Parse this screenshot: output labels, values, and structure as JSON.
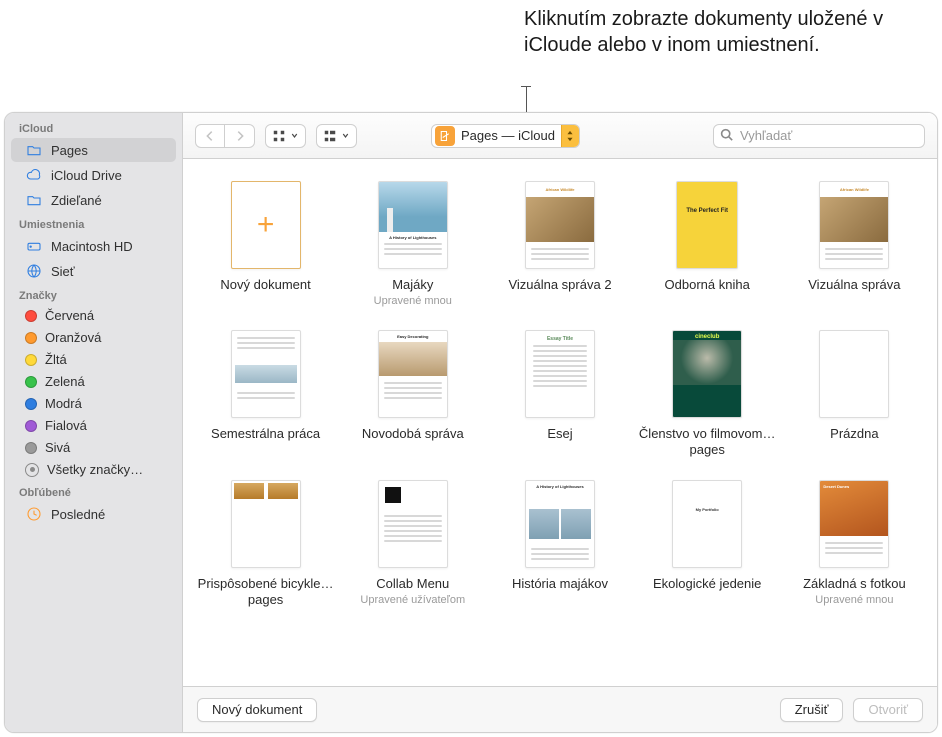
{
  "callout": {
    "text": "Kliknutím zobrazte dokumenty uložené v iCloude alebo v inom umiestnení."
  },
  "sidebar": {
    "sections": [
      {
        "header": "iCloud",
        "items": [
          {
            "icon": "folder",
            "label": "Pages",
            "selected": true
          },
          {
            "icon": "cloud",
            "label": "iCloud Drive"
          },
          {
            "icon": "folder-shared",
            "label": "Zdieľané"
          }
        ]
      },
      {
        "header": "Umiestnenia",
        "items": [
          {
            "icon": "hdd",
            "label": "Macintosh HD"
          },
          {
            "icon": "globe",
            "label": "Sieť"
          }
        ]
      },
      {
        "header": "Značky",
        "items": [
          {
            "tag_color": "#ff4d3f",
            "label": "Červená"
          },
          {
            "tag_color": "#ff9a2e",
            "label": "Oranžová"
          },
          {
            "tag_color": "#ffd93a",
            "label": "Žltá"
          },
          {
            "tag_color": "#38c24b",
            "label": "Zelená"
          },
          {
            "tag_color": "#2f7ee0",
            "label": "Modrá"
          },
          {
            "tag_color": "#a05ad6",
            "label": "Fialová"
          },
          {
            "tag_color": "#9a9a9a",
            "label": "Sivá"
          },
          {
            "icon": "all-tags",
            "label": "Všetky značky…"
          }
        ]
      },
      {
        "header": "Obľúbené",
        "items": [
          {
            "icon": "clock",
            "icon_color": "#ff9a2e",
            "label": "Posledné"
          }
        ]
      }
    ]
  },
  "toolbar": {
    "location": {
      "label": "Pages — iCloud"
    },
    "search_placeholder": "Vyhľadať"
  },
  "documents": [
    {
      "label": "Nový dokument",
      "sublabel": "",
      "variant": "new"
    },
    {
      "label": "Majáky",
      "sublabel": "Upravené mnou",
      "variant": "lighthouse"
    },
    {
      "label": "Vizuálna správa 2",
      "sublabel": "",
      "variant": "wildlife"
    },
    {
      "label": "Odborná kniha",
      "sublabel": "",
      "variant": "book",
      "book_title": "The Perfect Fit"
    },
    {
      "label": "Vizuálna správa",
      "sublabel": "",
      "variant": "wildlife"
    },
    {
      "label": "Semestrálna práca",
      "sublabel": "",
      "variant": "sem"
    },
    {
      "label": "Novodobá správa",
      "sublabel": "",
      "variant": "decor",
      "inner_title": "Easy Decorating"
    },
    {
      "label": "Esej",
      "sublabel": "",
      "variant": "essay"
    },
    {
      "label": "Členstvo vo filmovom…pages",
      "sublabel": "",
      "variant": "cineclub",
      "inner_title": "cineclub"
    },
    {
      "label": "Prázdna",
      "sublabel": "",
      "variant": "blank"
    },
    {
      "label": "Prispôsobené bicykle…pages",
      "sublabel": "",
      "variant": "bikes"
    },
    {
      "label": "Collab Menu",
      "sublabel": "Upravené užívateľom",
      "variant": "collab"
    },
    {
      "label": "História majákov",
      "sublabel": "",
      "variant": "history"
    },
    {
      "label": "Ekologické jedenie",
      "sublabel": "",
      "variant": "ekolog",
      "inner_title": "My Portfolio"
    },
    {
      "label": "Základná s fotkou",
      "sublabel": "Upravené mnou",
      "variant": "dunes",
      "inner_title": "Desert Dunes"
    }
  ],
  "footer": {
    "new_doc": "Nový dokument",
    "cancel": "Zrušiť",
    "open": "Otvoriť"
  },
  "styling": {
    "sidebar_bg": "#e4e4e6",
    "accent_orange": "#f8a33a",
    "accent_blue": "#2f7ee0",
    "popup_yellow": "#fbbf3f"
  }
}
